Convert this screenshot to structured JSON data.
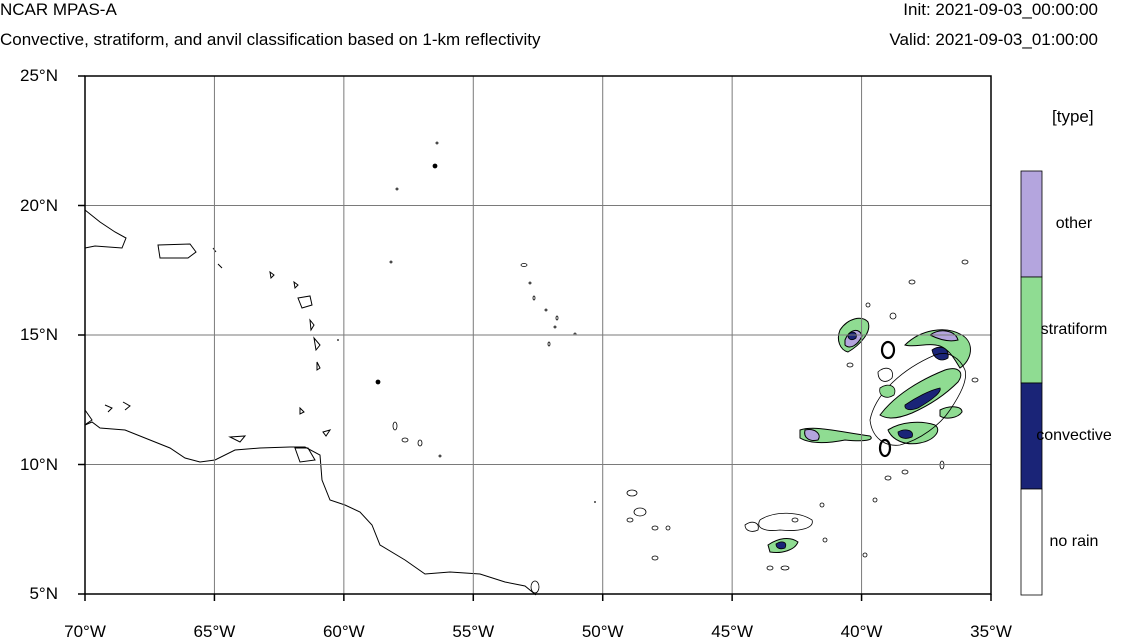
{
  "header": {
    "title": "NCAR MPAS-A",
    "subtitle": "Convective, stratiform, and anvil classification based on 1-km reflectivity",
    "init": "Init: 2021-09-03_00:00:00",
    "valid": "Valid: 2021-09-03_01:00:00"
  },
  "map": {
    "lon_range": [
      -70,
      -35
    ],
    "lat_range": [
      5,
      25
    ],
    "lon_ticks": [
      -70,
      -65,
      -60,
      -55,
      -50,
      -45,
      -40,
      -35
    ],
    "lat_ticks": [
      5,
      10,
      15,
      20,
      25
    ],
    "lon_labels": [
      "70°W",
      "65°W",
      "60°W",
      "55°W",
      "50°W",
      "45°W",
      "40°W",
      "35°W"
    ],
    "lat_labels": [
      "5°N",
      "10°N",
      "15°N",
      "20°N",
      "25°N"
    ],
    "gridlines": true
  },
  "legend": {
    "title": "[type]",
    "entries": [
      {
        "label": "other",
        "color": "#b4a5de"
      },
      {
        "label": "stratiform",
        "color": "#8fdc92"
      },
      {
        "label": "convective",
        "color": "#1a2477"
      },
      {
        "label": "no rain",
        "color": "#ffffff"
      }
    ]
  },
  "colors": {
    "other": "#b4a5de",
    "stratiform": "#8fdc92",
    "convective": "#1a2477",
    "coast": "#000000",
    "grid": "#7a7a7a"
  }
}
